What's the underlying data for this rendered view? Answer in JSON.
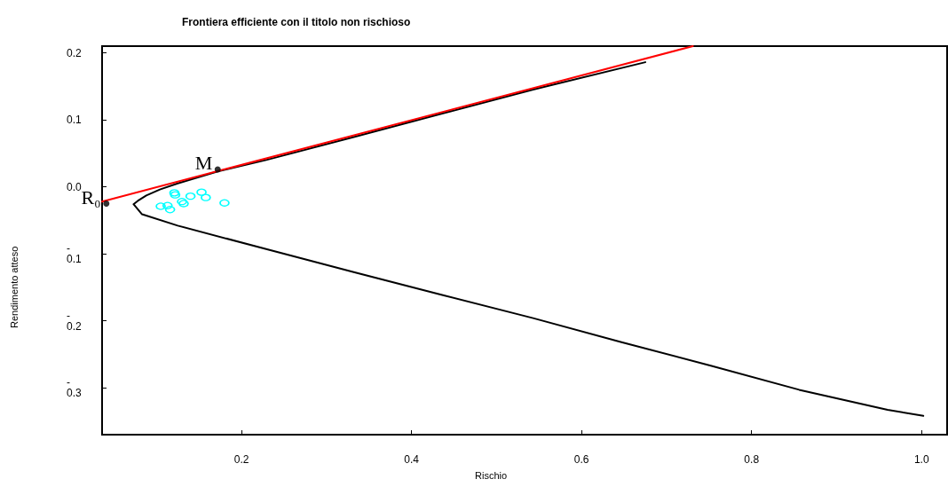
{
  "chart_data": {
    "type": "line",
    "title": "Frontiera efficiente con il titolo non rischioso",
    "xlabel": "Rischio",
    "ylabel": "Rendimento atteso",
    "xlim": [
      0.036,
      1.03
    ],
    "ylim": [
      -0.37,
      0.21
    ],
    "xticks": [
      0.2,
      0.4,
      0.6,
      0.8,
      {
        "value": 1.0,
        "label": "1.0"
      }
    ],
    "yticks": [
      {
        "value": 0.2,
        "label": "0.2"
      },
      {
        "value": 0.1,
        "label": "0.1"
      },
      {
        "value": 0.0,
        "label": "0.0"
      },
      {
        "value": -0.1,
        "label": "-\n0.1"
      },
      {
        "value": -0.2,
        "label": "-\n0.2"
      },
      {
        "value": -0.3,
        "label": "-\n0.3"
      }
    ],
    "grid": false,
    "series": [
      {
        "color": "#000000",
        "marker": "none",
        "line_style": "solid",
        "x": [
          0.675,
          0.543,
          0.438,
          0.334,
          0.229,
          0.172,
          0.125,
          0.104,
          0.088,
          0.078,
          0.073,
          0.083,
          0.125,
          0.229,
          0.334,
          0.438,
          0.543,
          0.647,
          0.752,
          0.856,
          0.96,
          1.002
        ],
        "values": [
          0.186,
          0.145,
          0.11,
          0.075,
          0.04,
          0.023,
          0.005,
          -0.004,
          -0.013,
          -0.021,
          -0.026,
          -0.041,
          -0.058,
          -0.093,
          -0.128,
          -0.162,
          -0.196,
          -0.232,
          -0.267,
          -0.303,
          -0.333,
          -0.342
        ]
      },
      {
        "color": "#ff0000",
        "marker": "none",
        "line_style": "solid",
        "x": [
          0.036,
          0.731
        ],
        "values": [
          -0.022,
          0.21
        ]
      },
      {
        "type": "scatter",
        "color": "#00ffff",
        "marker": "circle",
        "x": [
          0.121,
          0.122,
          0.14,
          0.153,
          0.158,
          0.18,
          0.105,
          0.113,
          0.116,
          0.13,
          0.132
        ],
        "values": [
          -0.009,
          -0.012,
          -0.014,
          -0.008,
          -0.016,
          -0.024,
          -0.029,
          -0.028,
          -0.034,
          -0.022,
          -0.025
        ]
      },
      {
        "type": "scatter",
        "color": "#000000",
        "marker": "circle",
        "x": [
          0.172,
          0.041
        ],
        "values": [
          0.026,
          -0.025
        ]
      }
    ],
    "annotations": [
      {
        "text": "M",
        "x": 0.172,
        "y": 0.026
      },
      {
        "text": "R₀",
        "x": 0.041,
        "y": -0.025
      }
    ]
  }
}
